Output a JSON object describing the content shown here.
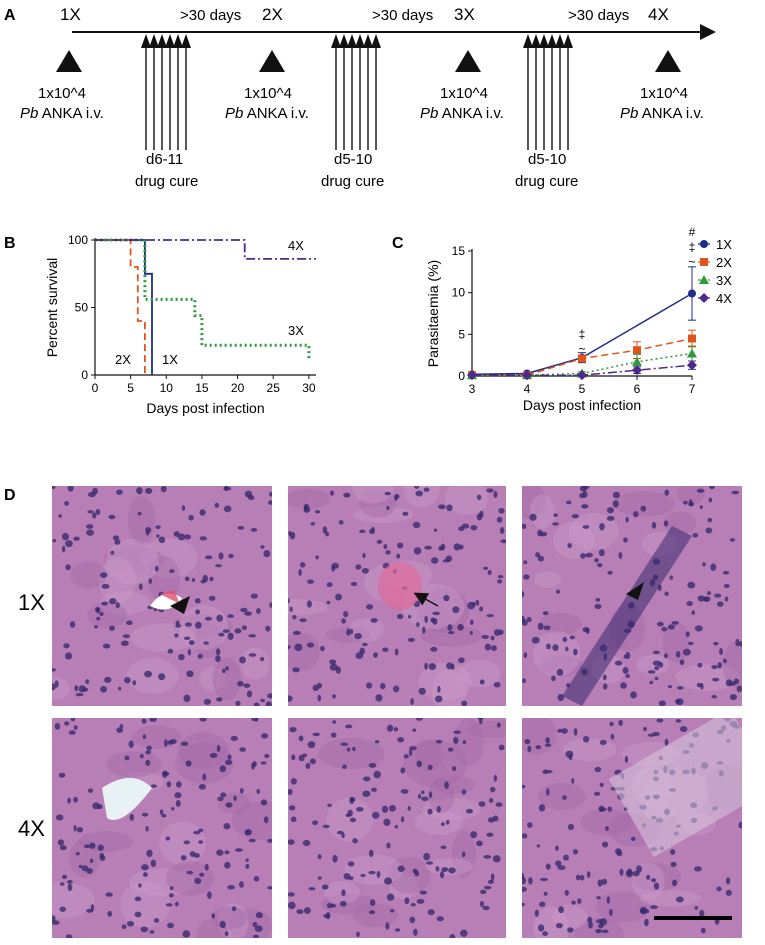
{
  "panels": {
    "A": {
      "letter": "A",
      "stages": [
        {
          "label": "1X",
          "dose_line1": "1x10^4",
          "dose_pb": "Pb",
          "dose_rest": " ANKA i.v."
        },
        {
          "label": "2X",
          "dose_line1": "1x10^4",
          "dose_pb": "Pb",
          "dose_rest": " ANKA i.v."
        },
        {
          "label": "3X",
          "dose_line1": "1x10^4",
          "dose_pb": "Pb",
          "dose_rest": " ANKA i.v."
        },
        {
          "label": "4X",
          "dose_line1": "1x10^4",
          "dose_pb": "Pb",
          "dose_rest": " ANKA i.v."
        }
      ],
      "intervals": [
        ">30 days",
        ">30 days",
        ">30 days"
      ],
      "cures": [
        {
          "days": "d6-11",
          "label": "drug cure"
        },
        {
          "days": "d5-10",
          "label": "drug cure"
        },
        {
          "days": "d5-10",
          "label": "drug cure"
        }
      ]
    },
    "B": {
      "letter": "B"
    },
    "C": {
      "letter": "C"
    },
    "D": {
      "letter": "D",
      "rows": [
        "1X",
        "4X"
      ],
      "tissue_color": "#b77fb6",
      "nuclei_color": "#3a2a6e"
    }
  },
  "chart_data": [
    {
      "type": "line",
      "panel": "B",
      "xlabel": "Days post infection",
      "ylabel": "Percent survival",
      "xlim": [
        0,
        31
      ],
      "ylim": [
        0,
        100
      ],
      "xticks": [
        "0",
        "5",
        "10",
        "15",
        "20",
        "25",
        "30"
      ],
      "yticks": [
        "0",
        "50",
        "100"
      ],
      "step": true,
      "series": [
        {
          "name": "1X",
          "color": "#1f2d8a",
          "dash": "solid",
          "x": [
            0,
            7,
            7,
            8,
            8
          ],
          "y": [
            100,
            100,
            75,
            75,
            0
          ]
        },
        {
          "name": "2X",
          "color": "#e0541e",
          "dash": "dashed",
          "x": [
            0,
            5,
            5,
            6,
            6,
            7,
            7
          ],
          "y": [
            100,
            100,
            80,
            80,
            40,
            40,
            0
          ]
        },
        {
          "name": "3X",
          "color": "#2e9a3a",
          "dash": "dotted",
          "x": [
            0,
            7,
            7,
            14,
            14,
            15,
            15,
            30,
            30
          ],
          "y": [
            100,
            100,
            56,
            56,
            44,
            44,
            22,
            22,
            12
          ]
        },
        {
          "name": "4X",
          "color": "#4b2a8c",
          "dash": "dashdot",
          "x": [
            0,
            21,
            21,
            31
          ],
          "y": [
            100,
            100,
            86,
            86
          ]
        }
      ]
    },
    {
      "type": "line",
      "panel": "C",
      "xlabel": "Days post infection",
      "ylabel": "Parasitaemia (%)",
      "xlim": [
        3,
        7
      ],
      "ylim": [
        0,
        15
      ],
      "xticks": [
        "3",
        "4",
        "5",
        "6",
        "7"
      ],
      "yticks": [
        "0",
        "5",
        "10",
        "15"
      ],
      "legend": "right",
      "x": [
        3,
        4,
        5,
        6,
        7
      ],
      "series": [
        {
          "name": "1X",
          "color": "#1f2d8a",
          "marker": "circle",
          "dash": "solid",
          "values": [
            0.2,
            0.3,
            2.2,
            null,
            9.9
          ],
          "err": [
            0.1,
            0.1,
            0.6,
            null,
            3.2
          ]
        },
        {
          "name": "2X",
          "color": "#e0541e",
          "marker": "square",
          "dash": "dashed",
          "values": [
            0.1,
            0.1,
            2.1,
            3.1,
            4.5
          ],
          "err": [
            0.05,
            0.05,
            0.4,
            1.0,
            1.0
          ]
        },
        {
          "name": "3X",
          "color": "#2e9a3a",
          "marker": "triangle",
          "dash": "dotted",
          "values": [
            0.1,
            0.1,
            0.3,
            1.7,
            2.7
          ],
          "err": [
            0.05,
            0.05,
            0.2,
            0.9,
            0.9
          ]
        },
        {
          "name": "4X",
          "color": "#4b2a8c",
          "marker": "diamond",
          "dash": "dashdot",
          "values": [
            0.1,
            0.1,
            0.1,
            0.7,
            1.3
          ],
          "err": [
            0.05,
            0.05,
            0.05,
            0.4,
            0.5
          ]
        }
      ],
      "annotations": [
        {
          "x": 5,
          "lines": [
            "‡",
            "~"
          ]
        },
        {
          "x": 7,
          "lines": [
            "#",
            "‡",
            "~"
          ]
        }
      ]
    }
  ]
}
